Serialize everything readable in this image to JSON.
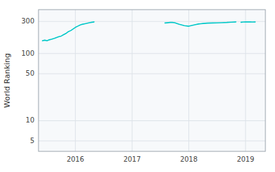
{
  "chart_data": {
    "type": "line",
    "ylabel": "World Ranking",
    "log": "y",
    "grid": true,
    "xlim": [
      2015.35,
      2019.35
    ],
    "xticks": [
      2016,
      2017,
      2018,
      2019
    ],
    "ylim": [
      3.5,
      450
    ],
    "yticks": [
      5,
      10,
      50,
      100,
      300
    ],
    "series": [
      {
        "color": "#00c8c8",
        "x": [
          2015.42,
          2015.46,
          2015.5,
          2015.54,
          2015.58,
          2015.63,
          2015.67,
          2015.71,
          2015.75,
          2015.79,
          2015.83,
          2015.87,
          2015.92,
          2015.96,
          2016.0,
          2016.04,
          2016.08,
          2016.12,
          2016.17,
          2016.21,
          2016.25,
          2016.29,
          2016.33
        ],
        "values": [
          155,
          158,
          155,
          160,
          163,
          168,
          173,
          178,
          182,
          190,
          198,
          210,
          220,
          232,
          245,
          255,
          265,
          272,
          278,
          283,
          288,
          292,
          295
        ]
      },
      {
        "color": "#00c8c8",
        "x": [
          2017.58,
          2017.62,
          2017.67,
          2017.71,
          2017.75,
          2017.83,
          2017.92,
          2018.0,
          2018.08,
          2018.12,
          2018.17,
          2018.21,
          2018.25,
          2018.33,
          2018.42,
          2018.5,
          2018.58,
          2018.67,
          2018.75,
          2018.83
        ],
        "values": [
          285,
          287,
          290,
          290,
          287,
          272,
          260,
          255,
          265,
          270,
          275,
          278,
          280,
          283,
          285,
          286,
          288,
          290,
          293,
          295
        ]
      },
      {
        "color": "#00c8c8",
        "x": [
          2018.92,
          2018.96,
          2019.0,
          2019.04,
          2019.08,
          2019.12,
          2019.17
        ],
        "values": [
          292,
          294,
          295,
          296,
          295,
          294,
          295
        ]
      }
    ]
  }
}
